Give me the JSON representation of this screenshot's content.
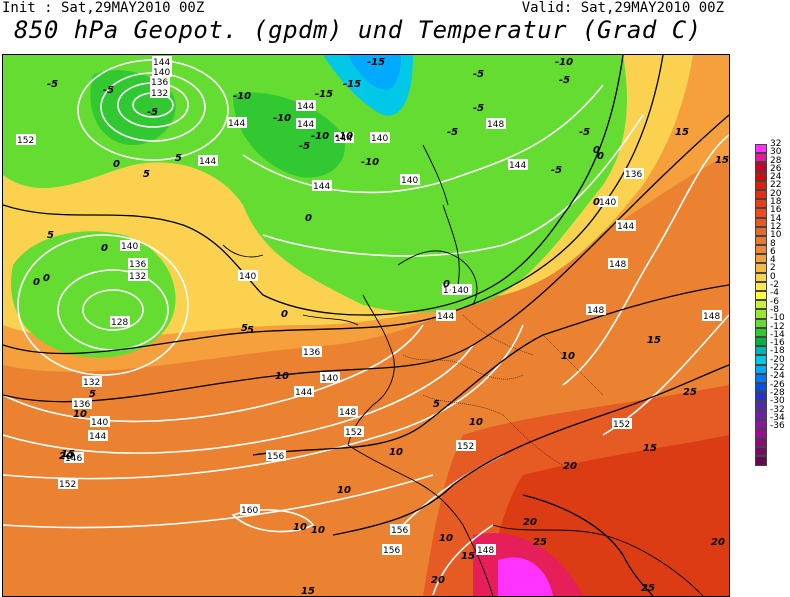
{
  "header": {
    "init": "Init : Sat,29MAY2010 00Z",
    "valid": "Valid: Sat,29MAY2010 00Z",
    "title": "850 hPa Geopot. (gpdm) und Temperatur (Grad C)"
  },
  "legend": {
    "labels": [
      "32",
      "30",
      "28",
      "26",
      "24",
      "22",
      "20",
      "18",
      "16",
      "14",
      "12",
      "10",
      "8",
      "6",
      "4",
      "2",
      "0",
      "-2",
      "-4",
      "-6",
      "-8",
      "-10",
      "-12",
      "-14",
      "-16",
      "-18",
      "-20",
      "-22",
      "-24",
      "-26",
      "-28",
      "-30",
      "-32",
      "-34",
      "-36"
    ],
    "colors": [
      "#ff33ff",
      "#e6199f",
      "#c80028",
      "#d20a0a",
      "#dc1e0a",
      "#e62d0f",
      "#f03c14",
      "#f04b1e",
      "#e65a23",
      "#e6692d",
      "#eb7832",
      "#f08737",
      "#f5a03c",
      "#f5b946",
      "#fad250",
      "#ffe65a",
      "#ffff3c",
      "#c8f03c",
      "#96e632",
      "#64dc32",
      "#32c832",
      "#00b43c",
      "#00b4b4",
      "#00c8e6",
      "#00aaff",
      "#0078ff",
      "#0050e6",
      "#2832c8",
      "#5028b4",
      "#6e1eaa",
      "#8c14a0",
      "#a00a96",
      "#8c0a78",
      "#780a64",
      "#640a50"
    ]
  },
  "map_labels": {
    "geopotential": [
      {
        "t": "144"
      },
      {
        "t": "140"
      },
      {
        "t": "136"
      },
      {
        "t": "132"
      },
      {
        "t": "152"
      },
      {
        "t": "144"
      },
      {
        "t": "144"
      },
      {
        "t": "144"
      },
      {
        "t": "144"
      },
      {
        "t": "140"
      },
      {
        "t": "144"
      },
      {
        "t": "144"
      },
      {
        "t": "140"
      },
      {
        "t": "148"
      },
      {
        "t": "144"
      },
      {
        "t": "136"
      },
      {
        "t": "140"
      },
      {
        "t": "144"
      },
      {
        "t": "140"
      },
      {
        "t": "136"
      },
      {
        "t": "132"
      },
      {
        "t": "140"
      },
      {
        "t": "1·140"
      },
      {
        "t": "128"
      },
      {
        "t": "144"
      },
      {
        "t": "148"
      },
      {
        "t": "148"
      },
      {
        "t": "136"
      },
      {
        "t": "140"
      },
      {
        "t": "132"
      },
      {
        "t": "144"
      },
      {
        "t": "136"
      },
      {
        "t": "148"
      },
      {
        "t": "140"
      },
      {
        "t": "152"
      },
      {
        "t": "144"
      },
      {
        "t": "148"
      },
      {
        "t": "146"
      },
      {
        "t": "156"
      },
      {
        "t": "152"
      },
      {
        "t": "152"
      },
      {
        "t": "152"
      },
      {
        "t": "160"
      },
      {
        "t": "156"
      },
      {
        "t": "156"
      },
      {
        "t": "148"
      }
    ],
    "temperature": [
      {
        "t": "-5"
      },
      {
        "t": "-5"
      },
      {
        "t": "-10"
      },
      {
        "t": "-15"
      },
      {
        "t": "-15"
      },
      {
        "t": "-10"
      },
      {
        "t": "-15"
      },
      {
        "t": "-10"
      },
      {
        "t": "-5"
      },
      {
        "t": "-10"
      },
      {
        "t": "-10"
      },
      {
        "t": "-5"
      },
      {
        "t": "-5"
      },
      {
        "t": "-10"
      },
      {
        "t": "-5"
      },
      {
        "t": "-5"
      },
      {
        "t": "-5"
      },
      {
        "t": "-5"
      },
      {
        "t": "-5"
      },
      {
        "t": "0"
      },
      {
        "t": "5"
      },
      {
        "t": "0"
      },
      {
        "t": "0"
      },
      {
        "t": "0"
      },
      {
        "t": "0"
      },
      {
        "t": "0"
      },
      {
        "t": "0"
      },
      {
        "t": "5"
      },
      {
        "t": "0"
      },
      {
        "t": "5"
      },
      {
        "t": "5"
      },
      {
        "t": "5"
      },
      {
        "t": "10"
      },
      {
        "t": "10"
      },
      {
        "t": "10"
      },
      {
        "t": "15"
      },
      {
        "t": "15"
      },
      {
        "t": "15"
      },
      {
        "t": "5"
      },
      {
        "t": "10"
      },
      {
        "t": "10"
      },
      {
        "t": "10"
      },
      {
        "t": "10"
      },
      {
        "t": "15"
      },
      {
        "t": "20"
      },
      {
        "t": "20"
      },
      {
        "t": "20"
      },
      {
        "t": "25"
      },
      {
        "t": "25"
      },
      {
        "t": "15"
      },
      {
        "t": "20"
      },
      {
        "t": "10"
      },
      {
        "t": "10"
      },
      {
        "t": "15"
      },
      {
        "t": "15"
      },
      {
        "t": "20"
      },
      {
        "t": "25"
      },
      {
        "t": "5"
      },
      {
        "t": "0"
      },
      {
        "t": "0"
      }
    ]
  }
}
